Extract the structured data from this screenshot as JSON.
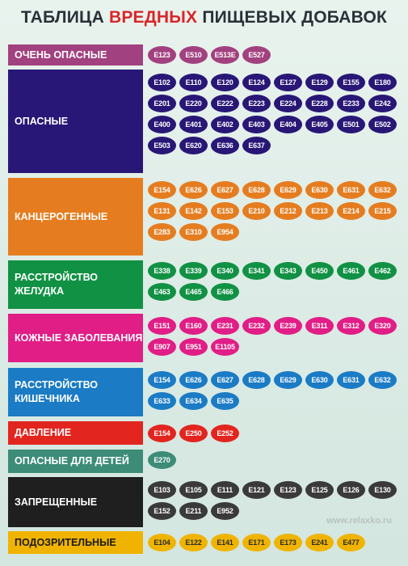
{
  "title": {
    "part1": "ТАБЛИЦА",
    "accent": "ВРЕДНЫХ",
    "part2": "ПИЩЕВЫХ ДОБАВОК"
  },
  "watermark": "www.relaxko.ru",
  "categories": [
    {
      "label": "ОЧЕНЬ ОПАСНЫЕ",
      "color": "#a2417f",
      "pill_color": "#a2417f",
      "codes": [
        "E123",
        "E510",
        "E513E",
        "E527"
      ]
    },
    {
      "label": "ОПАСНЫЕ",
      "color": "#281776",
      "pill_color": "#281776",
      "codes": [
        "E102",
        "E110",
        "E120",
        "E124",
        "E127",
        "E129",
        "E155",
        "E180",
        "E201",
        "E220",
        "E222",
        "E223",
        "E224",
        "E228",
        "E233",
        "E242",
        "E400",
        "E401",
        "E402",
        "E403",
        "E404",
        "E405",
        "E501",
        "E502",
        "E503",
        "E620",
        "E636",
        "E637"
      ]
    },
    {
      "label": "КАНЦЕРОГЕННЫЕ",
      "color": "#e57d20",
      "pill_color": "#e57d20",
      "codes": [
        "E154",
        "E626",
        "E627",
        "E628",
        "E629",
        "E630",
        "E631",
        "E632",
        "E131",
        "E142",
        "E153",
        "E210",
        "E212",
        "E213",
        "E214",
        "E215",
        "E283",
        "E310",
        "E954"
      ]
    },
    {
      "label": "РАССТРОЙСТВО ЖЕЛУДКА",
      "color": "#119144",
      "pill_color": "#119144",
      "codes": [
        "E338",
        "E339",
        "E340",
        "E341",
        "E343",
        "E450",
        "E461",
        "E462",
        "E463",
        "E465",
        "E466"
      ]
    },
    {
      "label": "КОЖНЫЕ ЗАБОЛЕВАНИЯ",
      "color": "#e11d86",
      "pill_color": "#e11d86",
      "codes": [
        "E151",
        "E160",
        "E231",
        "E232",
        "E239",
        "E311",
        "E312",
        "E320",
        "E907",
        "E951",
        "E1105"
      ]
    },
    {
      "label": "РАССТРОЙСТВО КИШЕЧНИКА",
      "color": "#1b7bc5",
      "pill_color": "#1b7bc5",
      "codes": [
        "E154",
        "E626",
        "E627",
        "E628",
        "E629",
        "E630",
        "E631",
        "E632",
        "E633",
        "E634",
        "E635"
      ]
    },
    {
      "label": "ДАВЛЕНИЕ",
      "color": "#e2251f",
      "pill_color": "#e2251f",
      "codes": [
        "E154",
        "E250",
        "E252"
      ]
    },
    {
      "label": "ОПАСНЫЕ ДЛЯ ДЕТЕЙ",
      "color": "#3d8c78",
      "pill_color": "#3d8c78",
      "codes": [
        "E270"
      ]
    },
    {
      "label": "ЗАПРЕЩЕННЫЕ",
      "color": "#1f1f1f",
      "pill_color": "#3a3a3a",
      "codes": [
        "E103",
        "E105",
        "E111",
        "E121",
        "E123",
        "E125",
        "E126",
        "E130",
        "E152",
        "E211",
        "E952"
      ]
    },
    {
      "label": "ПОДОЗРИТЕЛЬНЫЕ",
      "color": "#f0b400",
      "pill_color": "#f0b400",
      "dark_text": true,
      "codes": [
        "E104",
        "E122",
        "E141",
        "E171",
        "E173",
        "E241",
        "E477"
      ]
    }
  ]
}
